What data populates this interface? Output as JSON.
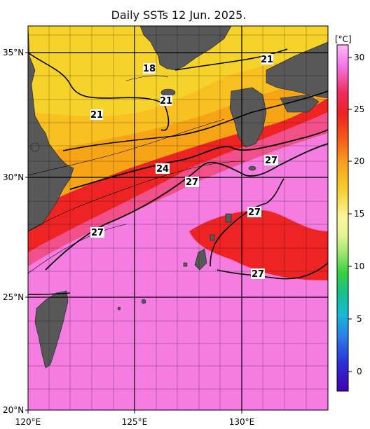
{
  "title": "Daily SSTs 12 Jun. 2025.",
  "colorbar": {
    "unit": "[°C]",
    "ticks": [
      "30",
      "25",
      "20",
      "15",
      "10",
      "5",
      "0"
    ]
  },
  "axes": {
    "lat_labels": [
      "35°N",
      "30°N",
      "25°N",
      "20°N"
    ],
    "lon_labels": [
      "120°E",
      "125°E",
      "130°E"
    ]
  },
  "isotherm_labels": [
    {
      "text": "21",
      "id": "iso-21-ne"
    },
    {
      "text": "18",
      "id": "iso-18"
    },
    {
      "text": "21",
      "id": "iso-21-korea-strait"
    },
    {
      "text": "21",
      "id": "iso-21-west"
    },
    {
      "text": "24",
      "id": "iso-24"
    },
    {
      "text": "27",
      "id": "iso-27-kyushu"
    },
    {
      "text": "27",
      "id": "iso-27-center"
    },
    {
      "text": "27",
      "id": "iso-27-east"
    },
    {
      "text": "27",
      "id": "iso-27-west"
    },
    {
      "text": "27",
      "id": "iso-27-south"
    }
  ],
  "colors": {
    "land": "#585858",
    "warm_pink": "#f57ce0",
    "red": "#ef2424",
    "orange": "#f7a417",
    "yellow": "#f6d32a"
  }
}
